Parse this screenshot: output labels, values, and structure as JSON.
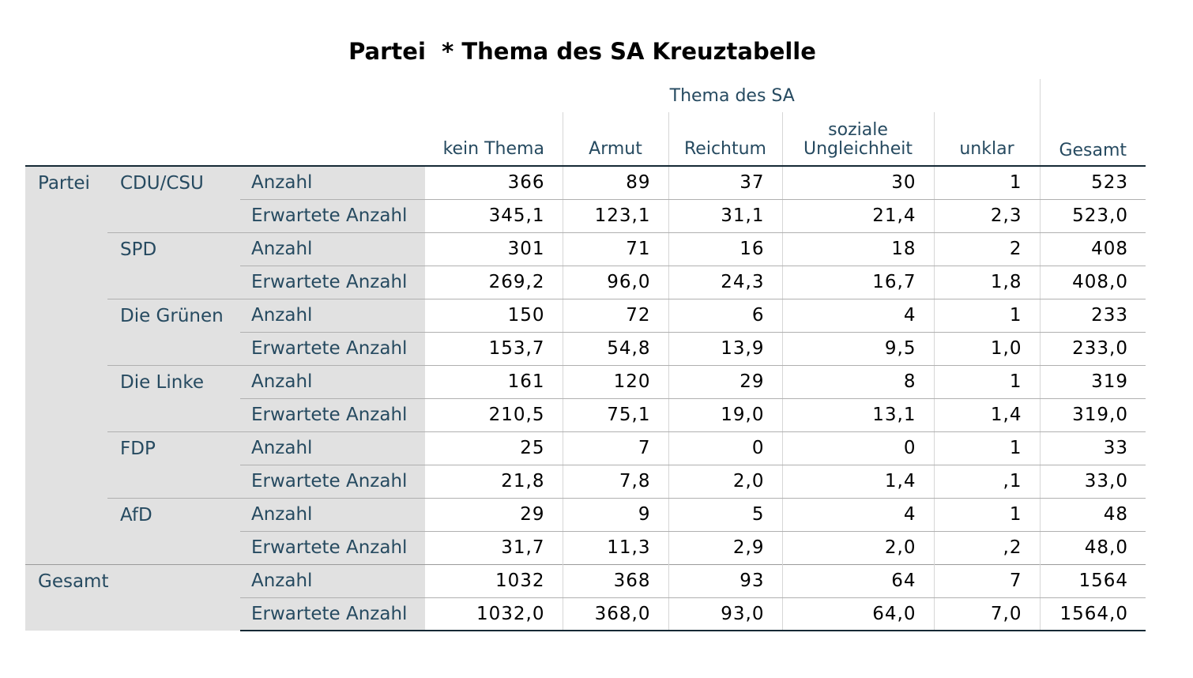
{
  "title": "Partei  * Thema des SA Kreuztabelle",
  "header": {
    "group_label": "Thema des SA",
    "columns": [
      "kein Thema",
      "Armut",
      "Reichtum",
      "soziale Ungleichheit",
      "unklar"
    ],
    "columns_wrapped": {
      "soziale_line1": "soziale",
      "soziale_line2": "Ungleichheit"
    },
    "total_label": "Gesamt"
  },
  "row_variable": "Partei",
  "stat_labels": {
    "count": "Anzahl",
    "expected": "Erwartete Anzahl"
  },
  "parties": [
    {
      "name": "CDU/CSU",
      "count": [
        "366",
        "89",
        "37",
        "30",
        "1",
        "523"
      ],
      "expected": [
        "345,1",
        "123,1",
        "31,1",
        "21,4",
        "2,3",
        "523,0"
      ]
    },
    {
      "name": "SPD",
      "count": [
        "301",
        "71",
        "16",
        "18",
        "2",
        "408"
      ],
      "expected": [
        "269,2",
        "96,0",
        "24,3",
        "16,7",
        "1,8",
        "408,0"
      ]
    },
    {
      "name": "Die Grünen",
      "count": [
        "150",
        "72",
        "6",
        "4",
        "1",
        "233"
      ],
      "expected": [
        "153,7",
        "54,8",
        "13,9",
        "9,5",
        "1,0",
        "233,0"
      ]
    },
    {
      "name": "Die Linke",
      "count": [
        "161",
        "120",
        "29",
        "8",
        "1",
        "319"
      ],
      "expected": [
        "210,5",
        "75,1",
        "19,0",
        "13,1",
        "1,4",
        "319,0"
      ]
    },
    {
      "name": "FDP",
      "count": [
        "25",
        "7",
        "0",
        "0",
        "1",
        "33"
      ],
      "expected": [
        "21,8",
        "7,8",
        "2,0",
        "1,4",
        ",1",
        "33,0"
      ]
    },
    {
      "name": "AfD",
      "count": [
        "29",
        "9",
        "5",
        "4",
        "1",
        "48"
      ],
      "expected": [
        "31,7",
        "11,3",
        "2,9",
        "2,0",
        ",2",
        "48,0"
      ]
    }
  ],
  "total": {
    "label": "Gesamt",
    "count": [
      "1032",
      "368",
      "93",
      "64",
      "7",
      "1564"
    ],
    "expected": [
      "1032,0",
      "368,0",
      "93,0",
      "64,0",
      "7,0",
      "1564,0"
    ]
  }
}
